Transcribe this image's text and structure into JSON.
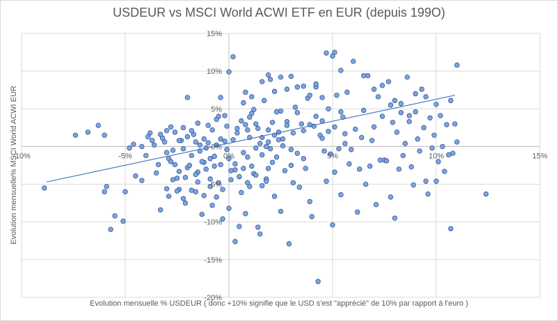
{
  "chart_data": {
    "type": "scatter",
    "title": "USDEUR vs MSCI World ACWI ETF en EUR (depuis 199O)",
    "xlabel": "Evolution mensuelle % USDEUR ( donc +10% signifie que le USD s'est \"apprécié\" de 10% par rapport à l'euro )",
    "ylabel": "Evolution mensuelle% MSCI World ACWI EUR",
    "xlim": [
      -10,
      15
    ],
    "ylim": [
      -20,
      15
    ],
    "x_ticks": [
      -10,
      -5,
      0,
      5,
      10,
      15
    ],
    "y_ticks": [
      -20,
      -15,
      -10,
      -5,
      0,
      5,
      10,
      15
    ],
    "x_tick_labels": [
      "-10%",
      "-5%",
      "0%",
      "5%",
      "10%",
      "15%"
    ],
    "y_tick_labels": [
      "-20%",
      "-15%",
      "-10%",
      "-5%",
      "0%",
      "5%",
      "10%",
      "15%"
    ],
    "grid": true,
    "marker_color": "#7fa5e0",
    "marker_edge": "#2f5597",
    "trendline": {
      "type": "linear",
      "x": [
        -8.8,
        10.9
      ],
      "y": [
        -4.7,
        6.8
      ],
      "color": "#4a7dbf"
    },
    "series": [
      {
        "name": "USDEUR vs MSCI World",
        "points": [
          [
            -8.9,
            -5.5
          ],
          [
            -7.4,
            1.5
          ],
          [
            -6.8,
            1.9
          ],
          [
            -6.3,
            2.8
          ],
          [
            -6.0,
            -6.0
          ],
          [
            -6.0,
            1.5
          ],
          [
            -5.9,
            -5.3
          ],
          [
            -5.7,
            -11.0
          ],
          [
            -5.5,
            -9.2
          ],
          [
            -5.1,
            -9.9
          ],
          [
            -5.0,
            -6.0
          ],
          [
            -4.8,
            -0.2
          ],
          [
            -4.6,
            0.3
          ],
          [
            -4.5,
            -3.9
          ],
          [
            -4.2,
            -4.5
          ],
          [
            -4.0,
            -1.2
          ],
          [
            -3.8,
            1.8
          ],
          [
            -3.7,
            0.8
          ],
          [
            -3.5,
            -3.5
          ],
          [
            -3.4,
            -2.4
          ],
          [
            -3.3,
            -8.4
          ],
          [
            -3.2,
            1.1
          ],
          [
            -3.0,
            -5.6
          ],
          [
            -3.0,
            -0.8
          ],
          [
            -3.0,
            2.1
          ],
          [
            -2.9,
            -1.6
          ],
          [
            -2.8,
            -2.0
          ],
          [
            -2.7,
            -0.5
          ],
          [
            -2.6,
            -2.4
          ],
          [
            -2.5,
            -4.2
          ],
          [
            -2.4,
            -5.7
          ],
          [
            -2.3,
            0.8
          ],
          [
            -2.2,
            -0.3
          ],
          [
            -2.1,
            -7.5
          ],
          [
            -2.0,
            6.5
          ],
          [
            -2.0,
            -2.8
          ],
          [
            -1.8,
            -1.2
          ],
          [
            -1.7,
            1.6
          ],
          [
            -1.6,
            -6.0
          ],
          [
            -1.5,
            -3.4
          ],
          [
            -1.5,
            3.1
          ],
          [
            -1.4,
            -0.6
          ],
          [
            -1.3,
            -9.0
          ],
          [
            -1.2,
            -2.1
          ],
          [
            -1.1,
            -0.2
          ],
          [
            -1.0,
            0.5
          ],
          [
            -1.0,
            2.8
          ],
          [
            -0.9,
            -4.3
          ],
          [
            -0.8,
            -7.8
          ],
          [
            -0.7,
            -1.3
          ],
          [
            -0.6,
            0.2
          ],
          [
            -0.5,
            -4.8
          ],
          [
            -0.5,
            4.0
          ],
          [
            -0.4,
            6.5
          ],
          [
            -0.4,
            -2.4
          ],
          [
            -0.3,
            -9.6
          ],
          [
            -0.2,
            0.7
          ],
          [
            -0.1,
            -0.4
          ],
          [
            -0.1,
            2.7
          ],
          [
            0.0,
            -8.2
          ],
          [
            0.0,
            -1.6
          ],
          [
            0.1,
            -4.4
          ],
          [
            0.2,
            0.9
          ],
          [
            0.3,
            -12.6
          ],
          [
            0.3,
            -3.1
          ],
          [
            0.4,
            2.4
          ],
          [
            0.5,
            -10.6
          ],
          [
            0.6,
            -6.1
          ],
          [
            0.7,
            -0.8
          ],
          [
            0.7,
            5.8
          ],
          [
            0.8,
            -8.9
          ],
          [
            0.9,
            -1.4
          ],
          [
            1.0,
            -5.3
          ],
          [
            1.0,
            1.2
          ],
          [
            1.1,
            4.4
          ],
          [
            1.2,
            -3.6
          ],
          [
            1.3,
            -0.2
          ],
          [
            1.4,
            -10.7
          ],
          [
            1.5,
            -11.6
          ],
          [
            1.5,
            0.4
          ],
          [
            1.6,
            -1.1
          ],
          [
            1.7,
            6.1
          ],
          [
            1.8,
            -4.3
          ],
          [
            1.9,
            -2.9
          ],
          [
            1.9,
            2.2
          ],
          [
            2.0,
            -0.3
          ],
          [
            2.0,
            8.9
          ],
          [
            2.1,
            -2.1
          ],
          [
            2.2,
            -6.6
          ],
          [
            2.3,
            -1.4
          ],
          [
            2.4,
            1.9
          ],
          [
            2.5,
            -8.6
          ],
          [
            2.5,
            4.7
          ],
          [
            2.6,
            0.1
          ],
          [
            2.7,
            -3.2
          ],
          [
            2.8,
            3.3
          ],
          [
            2.9,
            -12.9
          ],
          [
            3.0,
            -2.5
          ],
          [
            3.0,
            -0.4
          ],
          [
            3.1,
            -4.8
          ],
          [
            3.2,
            5.2
          ],
          [
            3.3,
            -0.9
          ],
          [
            3.4,
            -5.4
          ],
          [
            3.5,
            3.0
          ],
          [
            3.6,
            -1.6
          ],
          [
            3.7,
            -2.9
          ],
          [
            3.8,
            6.4
          ],
          [
            3.9,
            -7.3
          ],
          [
            4.0,
            -9.3
          ],
          [
            4.1,
            2.7
          ],
          [
            4.2,
            7.9
          ],
          [
            4.3,
            -17.9
          ],
          [
            4.4,
            1.5
          ],
          [
            4.5,
            3.4
          ],
          [
            4.6,
            -0.6
          ],
          [
            4.7,
            -4.6
          ],
          [
            4.8,
            2.0
          ],
          [
            4.9,
            -1.0
          ],
          [
            5.0,
            -10.4
          ],
          [
            5.0,
            12.0
          ],
          [
            5.1,
            -3.4
          ],
          [
            5.2,
            6.8
          ],
          [
            5.3,
            -0.3
          ],
          [
            5.4,
            -6.4
          ],
          [
            5.5,
            3.9
          ],
          [
            5.6,
            0.4
          ],
          [
            5.7,
            7.2
          ],
          [
            5.8,
            -2.3
          ],
          [
            5.9,
            -0.4
          ],
          [
            6.0,
            11.3
          ],
          [
            6.1,
            2.3
          ],
          [
            6.2,
            -8.7
          ],
          [
            6.3,
            -3.0
          ],
          [
            6.4,
            1.2
          ],
          [
            6.5,
            4.8
          ],
          [
            6.6,
            -5.0
          ],
          [
            6.7,
            9.4
          ],
          [
            6.8,
            -2.6
          ],
          [
            6.9,
            0.8
          ],
          [
            7.0,
            2.6
          ],
          [
            7.1,
            -7.7
          ],
          [
            7.2,
            6.6
          ],
          [
            7.3,
            -1.8
          ],
          [
            7.4,
            4.0
          ],
          [
            7.5,
            -1.8
          ],
          [
            7.6,
            -1.9
          ],
          [
            7.7,
            8.6
          ],
          [
            7.8,
            -6.7
          ],
          [
            7.9,
            3.2
          ],
          [
            8.0,
            -9.5
          ],
          [
            8.1,
            1.9
          ],
          [
            8.2,
            -3.0
          ],
          [
            8.3,
            5.7
          ],
          [
            8.4,
            -1.2
          ],
          [
            8.5,
            0.4
          ],
          [
            8.6,
            9.2
          ],
          [
            8.7,
            3.3
          ],
          [
            8.8,
            -2.7
          ],
          [
            8.9,
            -5.1
          ],
          [
            9.0,
            4.6
          ],
          [
            9.1,
            1.0
          ],
          [
            9.2,
            -0.6
          ],
          [
            9.3,
            7.6
          ],
          [
            9.4,
            2.5
          ],
          [
            9.5,
            -4.6
          ],
          [
            9.6,
            -6.3
          ],
          [
            9.7,
            3.8
          ],
          [
            9.8,
            -0.2
          ],
          [
            9.9,
            1.5
          ],
          [
            10.0,
            5.6
          ],
          [
            10.1,
            -2.0
          ],
          [
            10.2,
            4.1
          ],
          [
            10.3,
            0.0
          ],
          [
            10.4,
            -3.3
          ],
          [
            10.5,
            2.9
          ],
          [
            10.6,
            -1.1
          ],
          [
            10.7,
            6.1
          ],
          [
            10.8,
            -0.9
          ],
          [
            10.9,
            3.0
          ],
          [
            11.0,
            0.6
          ],
          [
            0.9,
            2.2
          ],
          [
            1.2,
            4.9
          ],
          [
            1.4,
            2.4
          ],
          [
            1.8,
            0.0
          ],
          [
            2.1,
            3.2
          ],
          [
            2.3,
            4.6
          ],
          [
            2.6,
            1.0
          ],
          [
            2.8,
            2.8
          ],
          [
            3.1,
            1.8
          ],
          [
            3.3,
            4.5
          ],
          [
            3.6,
            2.1
          ],
          [
            3.9,
            2.9
          ],
          [
            4.2,
            4.0
          ],
          [
            4.5,
            1.1
          ],
          [
            4.8,
            5.0
          ],
          [
            5.1,
            2.6
          ],
          [
            5.4,
            4.6
          ],
          [
            5.6,
            1.7
          ],
          [
            0.2,
            11.9
          ],
          [
            0.0,
            9.9
          ],
          [
            0.8,
            7.2
          ],
          [
            1.1,
            6.6
          ],
          [
            1.6,
            8.6
          ],
          [
            1.9,
            9.5
          ],
          [
            2.2,
            7.3
          ],
          [
            2.5,
            9.2
          ],
          [
            2.8,
            7.6
          ],
          [
            3.0,
            9.3
          ],
          [
            3.3,
            7.9
          ],
          [
            3.6,
            8.0
          ],
          [
            3.9,
            6.8
          ],
          [
            4.2,
            8.3
          ],
          [
            4.5,
            6.5
          ],
          [
            4.7,
            12.4
          ],
          [
            5.1,
            12.5
          ],
          [
            5.4,
            10.1
          ],
          [
            6.5,
            9.4
          ],
          [
            7.0,
            7.6
          ],
          [
            7.4,
            8.1
          ],
          [
            7.8,
            5.5
          ],
          [
            8.0,
            6.1
          ],
          [
            8.3,
            4.5
          ],
          [
            8.7,
            4.1
          ],
          [
            9.0,
            7.0
          ],
          [
            9.5,
            6.6
          ],
          [
            0.4,
            1.8
          ],
          [
            0.6,
            3.4
          ],
          [
            0.8,
            2.9
          ],
          [
            1.0,
            3.9
          ],
          [
            1.3,
            3.0
          ],
          [
            1.6,
            1.2
          ],
          [
            1.9,
            0.6
          ],
          [
            2.2,
            1.5
          ],
          [
            2.4,
            0.9
          ],
          [
            -0.8,
            2.2
          ],
          [
            -0.6,
            3.6
          ],
          [
            -0.4,
            1.0
          ],
          [
            -0.2,
            4.1
          ],
          [
            -1.2,
            1.0
          ],
          [
            -1.4,
            0.2
          ],
          [
            -1.6,
            0.6
          ],
          [
            -1.8,
            2.1
          ],
          [
            -2.0,
            1.3
          ],
          [
            -2.2,
            2.5
          ],
          [
            -2.4,
            0.8
          ],
          [
            -2.6,
            1.9
          ],
          [
            -2.8,
            2.6
          ],
          [
            -3.1,
            0.6
          ],
          [
            -3.3,
            1.6
          ],
          [
            -3.6,
            0.2
          ],
          [
            -3.9,
            1.3
          ],
          [
            -4.2,
            0.0
          ],
          [
            -0.7,
            -2.6
          ],
          [
            -0.9,
            -1.6
          ],
          [
            -1.1,
            -3.0
          ],
          [
            -1.3,
            -2.0
          ],
          [
            -1.6,
            -3.7
          ],
          [
            -1.9,
            -2.5
          ],
          [
            -2.1,
            -4.1
          ],
          [
            -2.4,
            -3.3
          ],
          [
            -2.7,
            -4.4
          ],
          [
            -0.3,
            -5.7
          ],
          [
            -0.6,
            -6.7
          ],
          [
            -0.9,
            -5.3
          ],
          [
            -1.2,
            -6.5
          ],
          [
            -1.5,
            -4.7
          ],
          [
            -1.8,
            -5.8
          ],
          [
            -2.2,
            -6.9
          ],
          [
            -2.5,
            -5.9
          ],
          [
            -2.9,
            -6.6
          ],
          [
            0.1,
            -3.2
          ],
          [
            0.3,
            -2.3
          ],
          [
            0.5,
            -4.0
          ],
          [
            0.7,
            -2.9
          ],
          [
            0.9,
            -4.8
          ],
          [
            1.1,
            -2.6
          ],
          [
            1.3,
            -3.8
          ],
          [
            1.6,
            -5.2
          ],
          [
            1.8,
            -4.6
          ],
          [
            10.7,
            -10.9
          ],
          [
            10.0,
            -4.6
          ],
          [
            12.4,
            -6.3
          ],
          [
            11.0,
            10.8
          ]
        ]
      }
    ]
  }
}
